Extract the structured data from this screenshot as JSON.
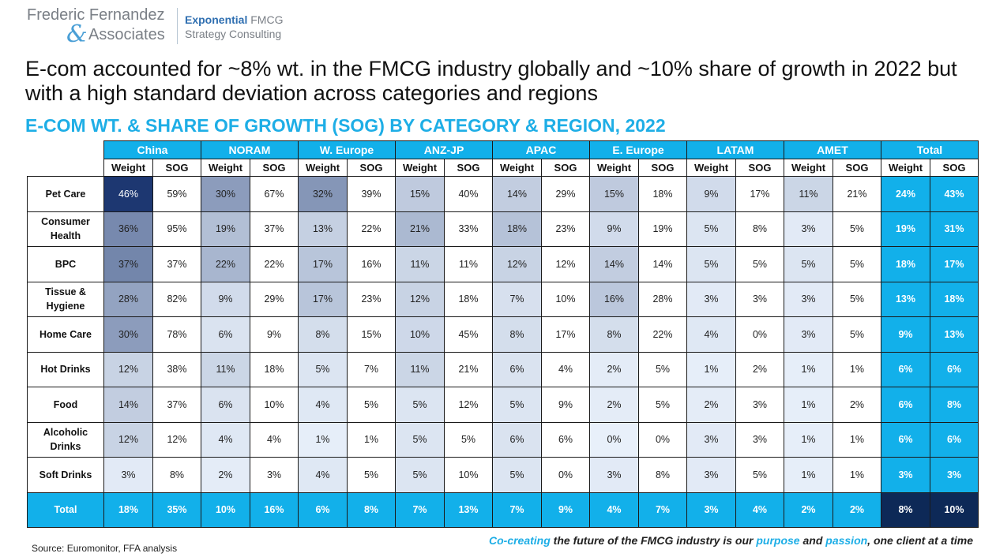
{
  "logo": {
    "name_line1": "Frederic Fernandez",
    "ampersand": "&",
    "name_line2": "Associates",
    "brand_bold": "Exponential",
    "brand_suffix": " FMCG",
    "brand_line2": "Strategy Consulting"
  },
  "headline": "E-com accounted for ~8% wt. in the FMCG industry globally and ~10% share of growth in 2022 but with a high standard deviation across categories and regions",
  "subheadline": "E-COM WT. & SHARE OF GROWTH (SOG) BY CATEGORY & REGION, 2022",
  "table": {
    "regions": [
      "China",
      "NORAM",
      "W. Europe",
      "ANZ-JP",
      "APAC",
      "E. Europe",
      "LATAM",
      "AMET",
      "Total"
    ],
    "sub_headers": [
      "Weight",
      "SOG"
    ],
    "rows": [
      {
        "category": "Pet Care",
        "values": [
          "46%",
          "59%",
          "30%",
          "67%",
          "32%",
          "39%",
          "15%",
          "40%",
          "14%",
          "29%",
          "15%",
          "18%",
          "9%",
          "17%",
          "11%",
          "21%",
          "24%",
          "43%"
        ]
      },
      {
        "category": "Consumer Health",
        "values": [
          "36%",
          "95%",
          "19%",
          "37%",
          "13%",
          "22%",
          "21%",
          "33%",
          "18%",
          "23%",
          "9%",
          "19%",
          "5%",
          "8%",
          "3%",
          "5%",
          "19%",
          "31%"
        ]
      },
      {
        "category": "BPC",
        "values": [
          "37%",
          "37%",
          "22%",
          "22%",
          "17%",
          "16%",
          "11%",
          "11%",
          "12%",
          "12%",
          "14%",
          "14%",
          "5%",
          "5%",
          "5%",
          "5%",
          "18%",
          "17%"
        ]
      },
      {
        "category": "Tissue & Hygiene",
        "values": [
          "28%",
          "82%",
          "9%",
          "29%",
          "17%",
          "23%",
          "12%",
          "18%",
          "7%",
          "10%",
          "16%",
          "28%",
          "3%",
          "3%",
          "3%",
          "5%",
          "13%",
          "18%"
        ]
      },
      {
        "category": "Home Care",
        "values": [
          "30%",
          "78%",
          "6%",
          "9%",
          "8%",
          "15%",
          "10%",
          "45%",
          "8%",
          "17%",
          "8%",
          "22%",
          "4%",
          "0%",
          "3%",
          "5%",
          "9%",
          "13%"
        ]
      },
      {
        "category": "Hot Drinks",
        "values": [
          "12%",
          "38%",
          "11%",
          "18%",
          "5%",
          "7%",
          "11%",
          "21%",
          "6%",
          "4%",
          "2%",
          "5%",
          "1%",
          "2%",
          "1%",
          "1%",
          "6%",
          "6%"
        ]
      },
      {
        "category": "Food",
        "values": [
          "14%",
          "37%",
          "6%",
          "10%",
          "4%",
          "5%",
          "5%",
          "12%",
          "5%",
          "9%",
          "2%",
          "5%",
          "2%",
          "3%",
          "1%",
          "2%",
          "6%",
          "8%"
        ]
      },
      {
        "category": "Alcoholic Drinks",
        "values": [
          "12%",
          "12%",
          "4%",
          "4%",
          "1%",
          "1%",
          "5%",
          "5%",
          "6%",
          "6%",
          "0%",
          "0%",
          "3%",
          "3%",
          "1%",
          "1%",
          "6%",
          "6%"
        ]
      },
      {
        "category": "Soft Drinks",
        "values": [
          "3%",
          "8%",
          "2%",
          "3%",
          "4%",
          "5%",
          "5%",
          "10%",
          "5%",
          "0%",
          "3%",
          "8%",
          "3%",
          "5%",
          "1%",
          "1%",
          "3%",
          "3%"
        ]
      }
    ],
    "total_row": {
      "category": "Total",
      "values": [
        "18%",
        "35%",
        "10%",
        "16%",
        "6%",
        "8%",
        "7%",
        "13%",
        "7%",
        "9%",
        "4%",
        "7%",
        "3%",
        "4%",
        "2%",
        "2%",
        "8%",
        "10%"
      ]
    }
  },
  "colors": {
    "accent": "#12b0ea",
    "dark": "#0d2957"
  },
  "footer": {
    "source": "Source: Euromonitor, FFA analysis",
    "tagline_1": "Co-creating",
    "tagline_2": " the future of the FMCG industry is our ",
    "tagline_3": "purpose",
    "tagline_4": " and ",
    "tagline_5": "passion",
    "tagline_6": ", one client at a time"
  }
}
